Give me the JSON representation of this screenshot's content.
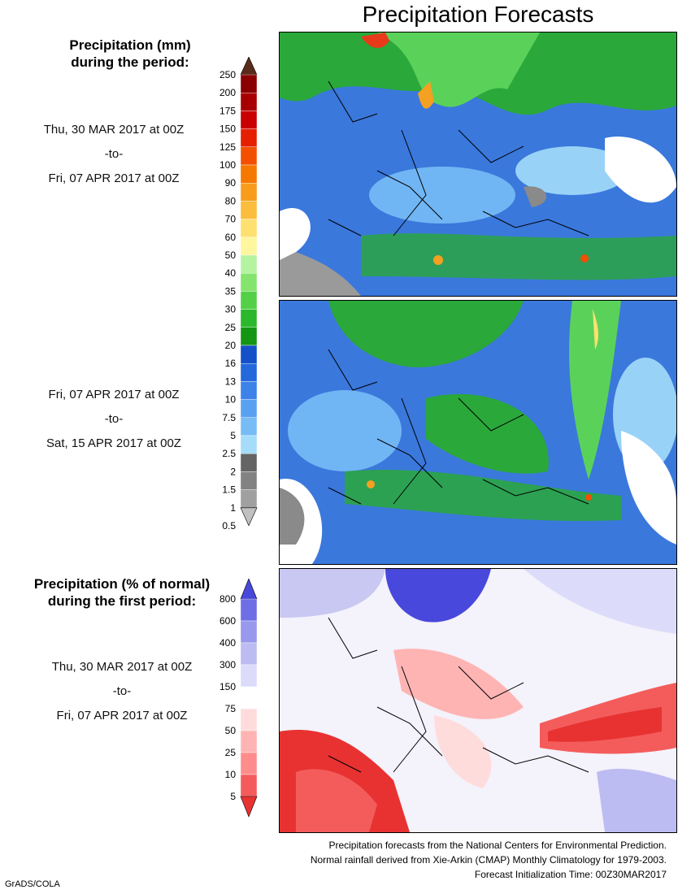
{
  "title": "Precipitation Forecasts",
  "panel1": {
    "heading": [
      "Precipitation (mm)",
      "during the period:"
    ],
    "period": [
      "Thu, 30 MAR 2017 at 00Z",
      "-to-",
      "Fri, 07 APR 2017 at 00Z"
    ]
  },
  "panel2": {
    "period": [
      "Fri, 07 APR 2017 at 00Z",
      "-to-",
      "Sat, 15 APR 2017 at 00Z"
    ]
  },
  "panel3": {
    "heading": [
      "Precipitation (% of normal)",
      "during the first period:"
    ],
    "period": [
      "Thu, 30 MAR 2017 at 00Z",
      "-to-",
      "Fri, 07 APR 2017 at 00Z"
    ]
  },
  "mm_scale": {
    "labels": [
      "250",
      "200",
      "175",
      "150",
      "125",
      "100",
      "90",
      "80",
      "70",
      "60",
      "50",
      "40",
      "35",
      "30",
      "25",
      "20",
      "16",
      "13",
      "10",
      "7.5",
      "5",
      "2.5",
      "2",
      "1.5",
      "1",
      "0.5"
    ],
    "colors": [
      "#5a2a1a",
      "#8a0000",
      "#a80000",
      "#c80000",
      "#e42000",
      "#f25000",
      "#f57800",
      "#f89c1c",
      "#fbbd3c",
      "#fde070",
      "#fff6a0",
      "#b4f4a0",
      "#84e46e",
      "#54d048",
      "#2cb82c",
      "#149614",
      "#1450c8",
      "#2468dc",
      "#3c82e8",
      "#5aa0f0",
      "#78bcf6",
      "#a4dcfa",
      "#646464",
      "#828282",
      "#a0a0a0",
      "#c0c0c0"
    ]
  },
  "pct_scale": {
    "labels": [
      "800",
      "600",
      "400",
      "300",
      "150",
      "75",
      "50",
      "25",
      "10",
      "5"
    ],
    "colors": [
      "#4848dc",
      "#6e6ee6",
      "#9898ec",
      "#bcbcf2",
      "#dcdcfa",
      "#ffffff",
      "#ffdcdc",
      "#ffb4b4",
      "#ff8c8c",
      "#f45c5c",
      "#e83232"
    ]
  },
  "footer": [
    "Precipitation forecasts from the National Centers for Environmental Prediction.",
    "Normal rainfall derived from Xie-Arkin (CMAP) Monthly Climatology for 1979-2003.",
    "Forecast Initialization Time: 00Z30MAR2017"
  ],
  "credit": "GrADS/COLA"
}
